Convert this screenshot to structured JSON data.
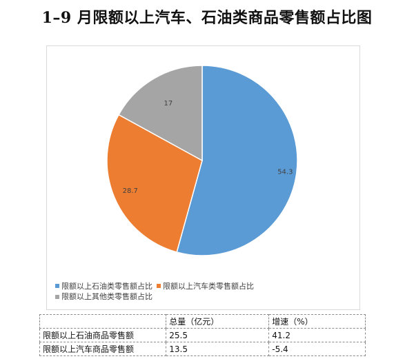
{
  "title": "1–9 月限额以上汽车、石油类商品零售额占比图",
  "chart_data": {
    "type": "pie",
    "labels": [
      "限额以上石油类零售额占比",
      "限额以上汽车类零售额占比",
      "限额以上其他类零售额占比"
    ],
    "values": [
      54.3,
      28.7,
      17
    ],
    "data_labels": [
      "54.3",
      "28.7",
      "17"
    ],
    "colors": [
      "#5b9bd5",
      "#ed7d31",
      "#a5a5a5"
    ],
    "legend_position": "bottom-left"
  },
  "table": {
    "headers": [
      "",
      "总量（亿元）",
      "增速（%）"
    ],
    "rows": [
      [
        "限额以上石油商品零售额",
        "25.5",
        "41.2"
      ],
      [
        "限额以上汽车商品零售额",
        "13.5",
        "-5.4"
      ]
    ]
  }
}
